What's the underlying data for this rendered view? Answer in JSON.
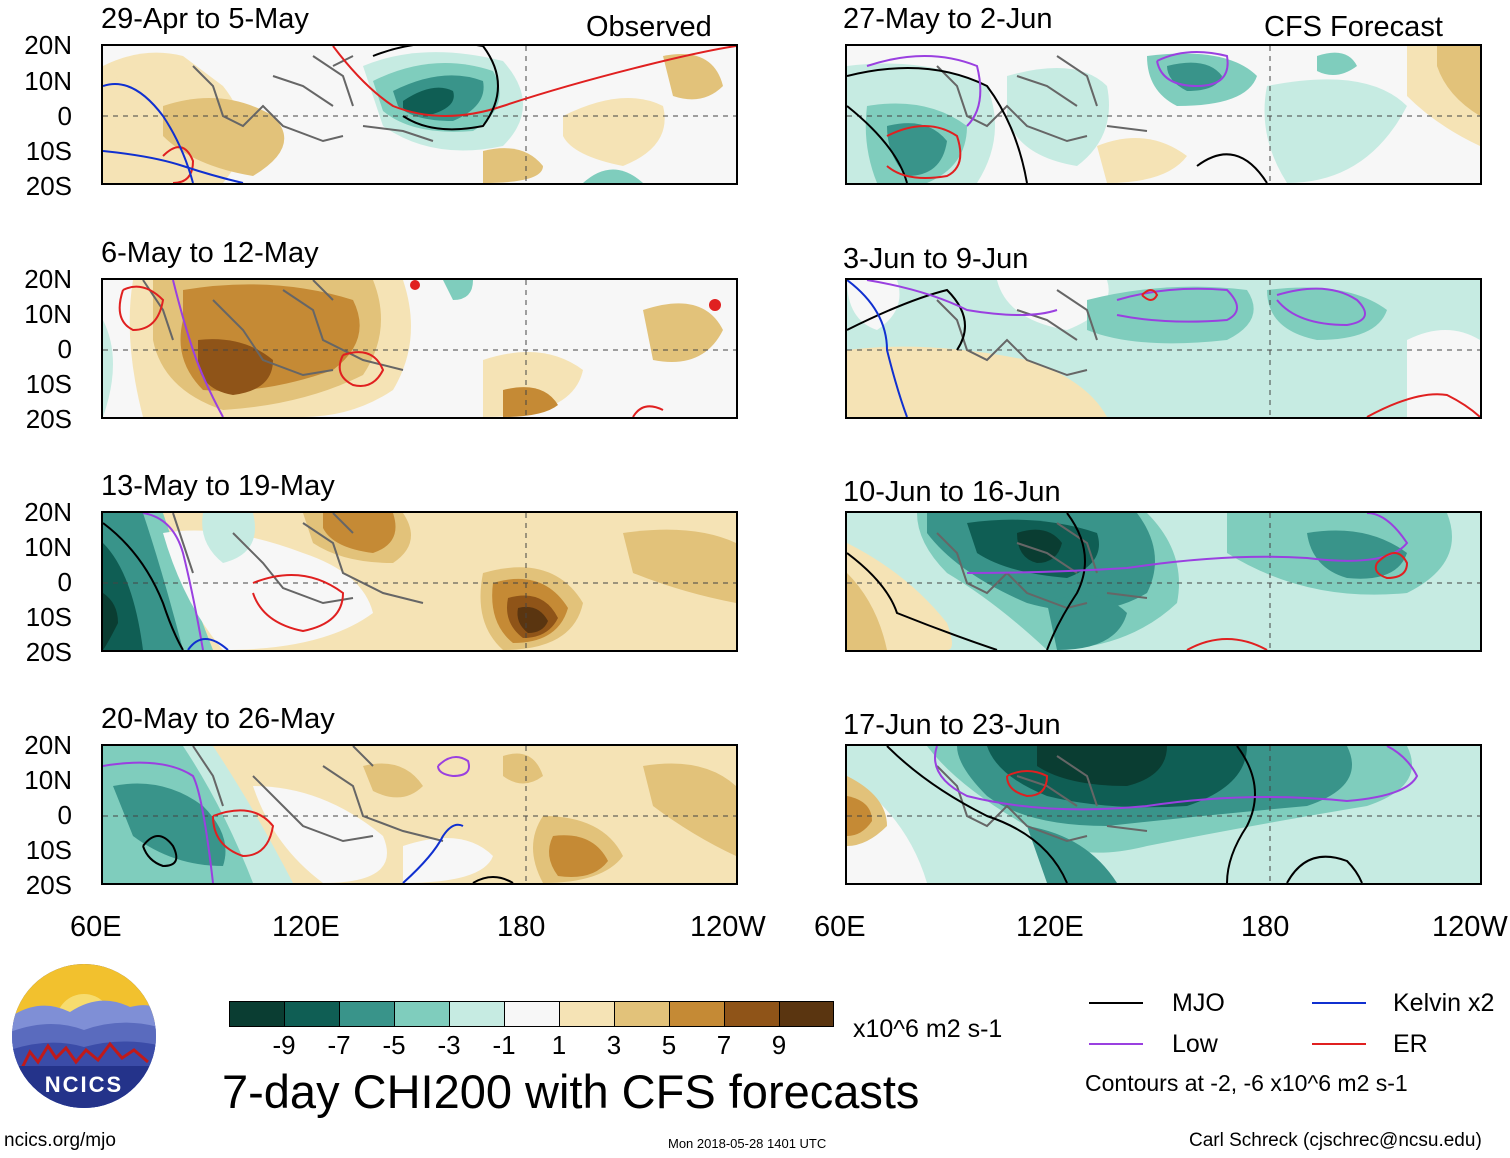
{
  "header": {
    "observed_label": "Observed",
    "forecast_label": "CFS Forecast"
  },
  "left_panels": [
    {
      "title": "29-Apr to 5-May"
    },
    {
      "title": "6-May to 12-May"
    },
    {
      "title": "13-May to 19-May"
    },
    {
      "title": "20-May to 26-May"
    }
  ],
  "right_panels": [
    {
      "title": "27-May to 2-Jun"
    },
    {
      "title": "3-Jun to 9-Jun"
    },
    {
      "title": "10-Jun to 16-Jun"
    },
    {
      "title": "17-Jun to 23-Jun"
    }
  ],
  "axes": {
    "lat_labels": [
      "20N",
      "10N",
      "0",
      "10S",
      "20S"
    ],
    "lon_labels": [
      "60E",
      "120E",
      "180",
      "120W"
    ]
  },
  "colorbar": {
    "ticks": [
      "-9",
      "-7",
      "-5",
      "-3",
      "-1",
      "1",
      "3",
      "5",
      "7",
      "9"
    ],
    "units": "x10^6 m2 s-1",
    "colors": [
      "#0a3d32",
      "#0f5e54",
      "#39948a",
      "#7fcdbd",
      "#c6ebe2",
      "#f7f7f7",
      "#f5e3b5",
      "#e2c27a",
      "#c58a35",
      "#8f5418",
      "#5a3510"
    ]
  },
  "main_title": "7-day CHI200 with CFS forecasts",
  "legend": {
    "items": [
      {
        "label": "MJO",
        "color": "#000000"
      },
      {
        "label": "Kelvin x2",
        "color": "#1030d0"
      },
      {
        "label": "Low",
        "color": "#9a40e0"
      },
      {
        "label": "ER",
        "color": "#e02020"
      }
    ],
    "contours_note": "Contours at -2, -6 x10^6 m2 s-1"
  },
  "logo": {
    "text": "NCICS"
  },
  "footer": {
    "url": "ncics.org/mjo",
    "timestamp": "Mon 2018-05-28 1401 UTC",
    "author": "Carl Schreck (cjschrec@ncsu.edu)"
  }
}
